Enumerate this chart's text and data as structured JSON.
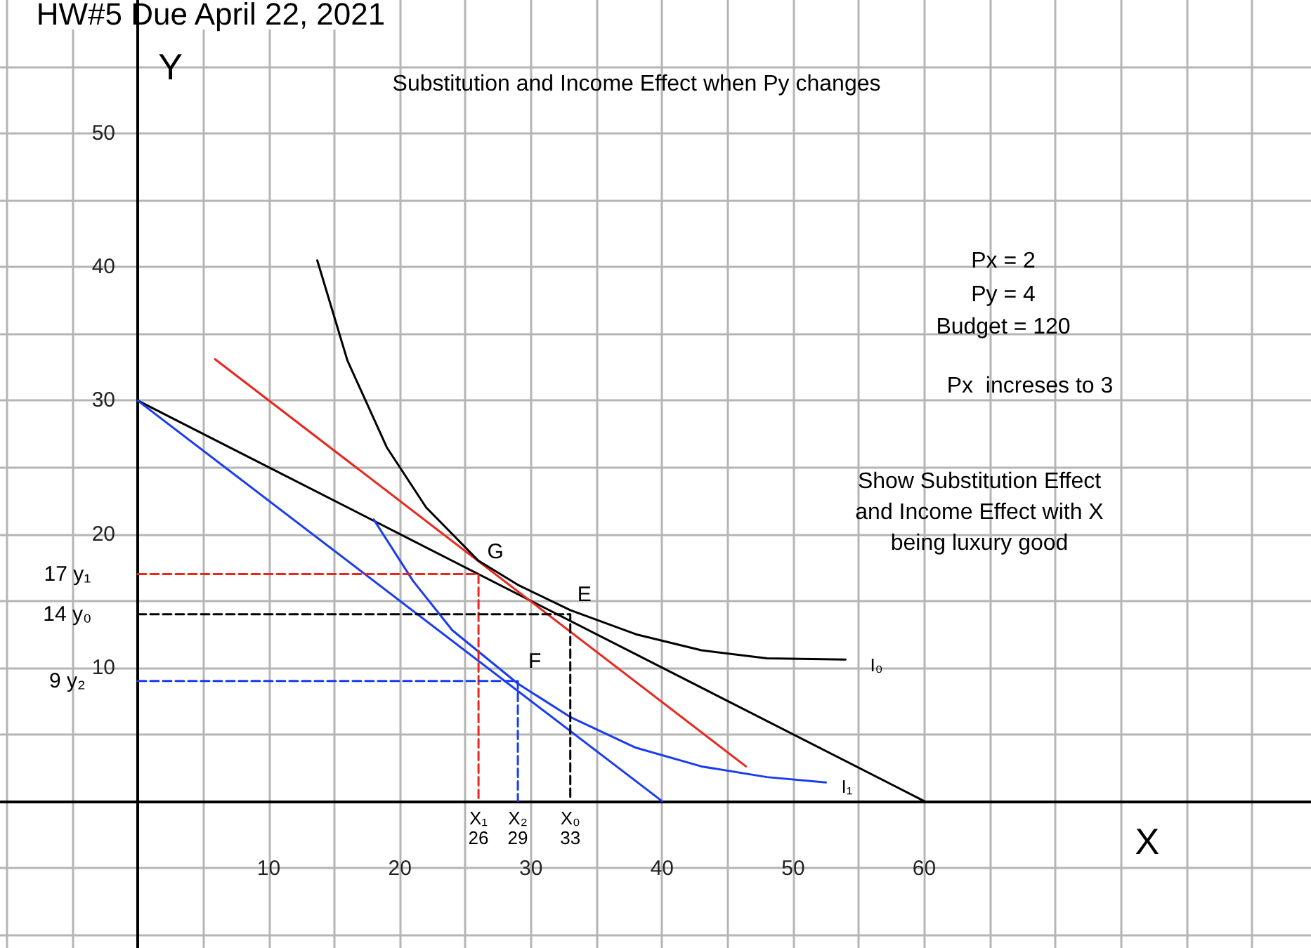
{
  "chart_data": {
    "type": "line",
    "title": "Substitution and Income Effect when Py changes",
    "xlabel": "X",
    "ylabel": "Y",
    "xlim": [
      -10.5,
      89.5
    ],
    "ylim": [
      -11,
      60
    ],
    "xticks": [
      {
        "value": -10,
        "label": null
      },
      {
        "value": -5,
        "label": null
      },
      {
        "value": 0,
        "label": null
      },
      {
        "value": 5,
        "label": null
      },
      10,
      {
        "value": 15,
        "label": null
      },
      20,
      {
        "value": 25,
        "label": null
      },
      30,
      {
        "value": 35,
        "label": null
      },
      40,
      {
        "value": 45,
        "label": null
      },
      50,
      {
        "value": 55,
        "label": null
      },
      60,
      {
        "value": 65,
        "label": null
      },
      {
        "value": 70,
        "label": null
      },
      {
        "value": 75,
        "label": null
      },
      {
        "value": 80,
        "label": null
      },
      {
        "value": 85,
        "label": null
      }
    ],
    "yticks": [
      {
        "value": -10,
        "label": null
      },
      {
        "value": -5,
        "label": null
      },
      {
        "value": 0,
        "label": null
      },
      {
        "value": 5,
        "label": null
      },
      10,
      {
        "value": 15,
        "label": null
      },
      20,
      {
        "value": 25,
        "label": null
      },
      30,
      {
        "value": 35,
        "label": null
      },
      40,
      {
        "value": 45,
        "label": null
      },
      50,
      {
        "value": 55,
        "label": null
      }
    ],
    "grid": true,
    "marker": "none",
    "line_style": "solid",
    "series": [
      {
        "color": "#000000",
        "x": [
          0,
          60
        ],
        "values": [
          30,
          0
        ]
      },
      {
        "color": "#1a3cf0",
        "x": [
          0,
          40
        ],
        "values": [
          30,
          0
        ]
      },
      {
        "color": "#e8281e",
        "x": [
          5.9,
          46.4
        ],
        "values": [
          33.1,
          2.6
        ]
      },
      {
        "color": "#000000",
        "x": [
          13.7,
          16,
          19,
          22,
          26,
          29,
          33,
          38,
          43,
          48,
          54
        ],
        "values": [
          40.5,
          33,
          26.5,
          22,
          18,
          16.2,
          14.3,
          12.5,
          11.3,
          10.7,
          10.6
        ]
      },
      {
        "color": "#1a3cf0",
        "x": [
          18,
          21,
          24,
          29,
          33,
          38,
          43,
          48,
          52.5
        ],
        "values": [
          21.1,
          16.5,
          12.8,
          8.8,
          6.3,
          4,
          2.6,
          1.8,
          1.4
        ]
      },
      {
        "color": "#e8281e",
        "line_style": "dashed",
        "x": [
          0,
          26,
          26
        ],
        "values": [
          17,
          17,
          0
        ]
      },
      {
        "color": "#000000",
        "line_style": "dashed",
        "x": [
          0,
          33,
          33
        ],
        "values": [
          14,
          14,
          0
        ]
      },
      {
        "color": "#1a3cf0",
        "line_style": "dashed",
        "x": [
          0,
          29,
          29
        ],
        "values": [
          9,
          9,
          0
        ]
      }
    ],
    "annotations": [
      "HW#5 Due April 22, 2021",
      "Px = 2",
      "Py = 4",
      "Budget = 120",
      "Px  increses to 3",
      "Show Substitution Effect\nand Income Effect with X\nbeing luxury good",
      {
        "text": "G",
        "x": 26,
        "y": 17
      },
      {
        "text": "E",
        "x": 33,
        "y": 14
      },
      {
        "text": "F",
        "x": 29,
        "y": 9
      },
      {
        "text": "I₀",
        "x": 54,
        "y": 10.6
      },
      {
        "text": "I₁",
        "x": 52.5,
        "y": 1.4
      },
      {
        "text": "17 y₁",
        "x": 0,
        "y": 17
      },
      {
        "text": "14 y₀",
        "x": 0,
        "y": 14
      },
      {
        "text": "9 y₂",
        "x": 0,
        "y": 9
      },
      {
        "text": "X₁\n26",
        "x": 26,
        "y": 0
      },
      {
        "text": "X₂\n29",
        "x": 29,
        "y": 0
      },
      {
        "text": "X₀\n33",
        "x": 33,
        "y": 0
      }
    ]
  }
}
